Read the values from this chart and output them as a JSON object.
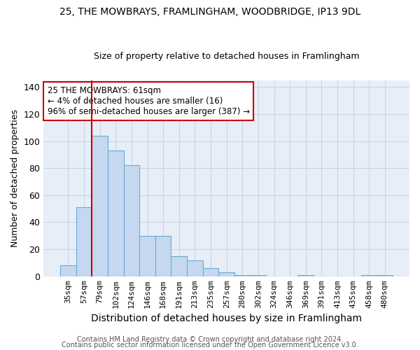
{
  "title1": "25, THE MOWBRAYS, FRAMLINGHAM, WOODBRIDGE, IP13 9DL",
  "title2": "Size of property relative to detached houses in Framlingham",
  "xlabel": "Distribution of detached houses by size in Framlingham",
  "ylabel": "Number of detached properties",
  "categories": [
    "35sqm",
    "57sqm",
    "79sqm",
    "102sqm",
    "124sqm",
    "146sqm",
    "168sqm",
    "191sqm",
    "213sqm",
    "235sqm",
    "257sqm",
    "280sqm",
    "302sqm",
    "324sqm",
    "346sqm",
    "369sqm",
    "391sqm",
    "413sqm",
    "435sqm",
    "458sqm",
    "480sqm"
  ],
  "values": [
    8,
    51,
    104,
    93,
    82,
    30,
    30,
    15,
    12,
    6,
    3,
    1,
    1,
    0,
    0,
    1,
    0,
    0,
    0,
    1,
    1
  ],
  "bar_color": "#c5d8ef",
  "bar_edge_color": "#6aabd2",
  "red_line_color": "#cc0000",
  "red_line_x": 1.5,
  "annotation_text": "25 THE MOWBRAYS: 61sqm\n← 4% of detached houses are smaller (16)\n96% of semi-detached houses are larger (387) →",
  "annotation_box_color": "#ffffff",
  "annotation_box_edge_color": "#cc0000",
  "ylim": [
    0,
    145
  ],
  "yticks": [
    0,
    20,
    40,
    60,
    80,
    100,
    120,
    140
  ],
  "footer1": "Contains HM Land Registry data © Crown copyright and database right 2024.",
  "footer2": "Contains public sector information licensed under the Open Government Licence v3.0.",
  "background_color": "#ffffff",
  "plot_bg_color": "#e8eef8",
  "grid_color": "#c8d4e8",
  "title1_fontsize": 10,
  "title2_fontsize": 9,
  "xlabel_fontsize": 10,
  "ylabel_fontsize": 9,
  "tick_fontsize": 8,
  "footer_fontsize": 7
}
